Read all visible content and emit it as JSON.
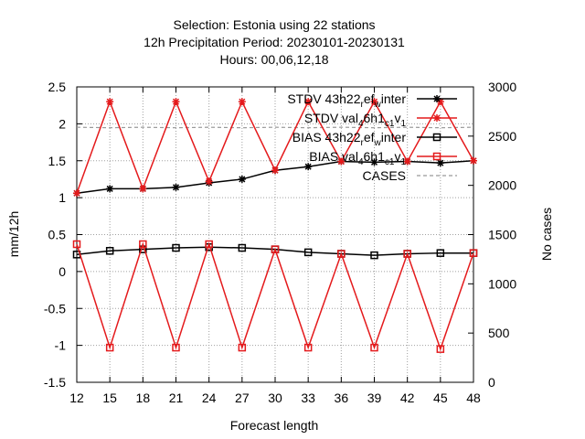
{
  "chart_data": {
    "type": "line",
    "title_lines": [
      "Selection: Estonia using     22 stations",
      "12h Precipitation    Period: 20230101-20230131",
      "Hours:  00,06,12,18"
    ],
    "xlabel": "Forecast length",
    "ylabel": "mm/12h",
    "y2label": "No cases",
    "x": [
      12,
      15,
      18,
      21,
      24,
      27,
      30,
      33,
      36,
      39,
      42,
      45,
      48
    ],
    "xlim": [
      12,
      48
    ],
    "ylim": [
      -1.5,
      2.5
    ],
    "y2lim": [
      0,
      3000
    ],
    "x_ticks": [
      "12",
      "15",
      "18",
      "21",
      "24",
      "27",
      "30",
      "33",
      "36",
      "39",
      "42",
      "45",
      "48"
    ],
    "y_ticks": [
      "-1.5",
      "-1",
      "-0.5",
      "0",
      "0.5",
      "1",
      "1.5",
      "2",
      "2.5"
    ],
    "y2_ticks": [
      "0",
      "500",
      "1000",
      "1500",
      "2000",
      "2500",
      "3000"
    ],
    "grid": true,
    "legend_position": "top-right",
    "series": [
      {
        "name": "STDV 43h22_ref_winter",
        "label_main": "STDV 43h22",
        "label_parts": [
          [
            "r",
            "ef"
          ],
          [
            "w",
            "inter"
          ]
        ],
        "color": "#000000",
        "marker": "star",
        "axis": "y1",
        "values": [
          1.06,
          1.12,
          1.12,
          1.14,
          1.2,
          1.25,
          1.37,
          1.42,
          1.49,
          1.48,
          1.49,
          1.47,
          1.5
        ]
      },
      {
        "name": "STDV val_46h1_c1_v1",
        "label_main": "STDV val",
        "label_parts": [
          [
            "4",
            "6h1"
          ],
          [
            "c1",
            "v"
          ],
          [
            "1",
            ""
          ]
        ],
        "color": "#e41a1c",
        "marker": "star",
        "axis": "y1",
        "values": [
          1.06,
          2.3,
          1.12,
          2.3,
          1.22,
          2.3,
          1.37,
          2.3,
          1.49,
          2.3,
          1.49,
          2.3,
          1.5
        ]
      },
      {
        "name": "BIAS 43h22_ref_winter",
        "label_main": "BIAS 43h22",
        "label_parts": [
          [
            "r",
            "ef"
          ],
          [
            "w",
            "inter"
          ]
        ],
        "color": "#000000",
        "marker": "square",
        "axis": "y1",
        "values": [
          0.23,
          0.28,
          0.3,
          0.32,
          0.33,
          0.32,
          0.3,
          0.26,
          0.24,
          0.22,
          0.24,
          0.25,
          0.25
        ]
      },
      {
        "name": "BIAS val_46h1_c1_v1",
        "label_main": "BIAS val",
        "label_parts": [
          [
            "4",
            "6h1"
          ],
          [
            "c1",
            "v"
          ],
          [
            "1",
            ""
          ]
        ],
        "color": "#e41a1c",
        "marker": "square",
        "axis": "y1",
        "values": [
          0.37,
          -1.03,
          0.37,
          -1.03,
          0.37,
          -1.03,
          0.3,
          -1.03,
          0.24,
          -1.03,
          0.24,
          -1.05,
          0.25
        ]
      },
      {
        "name": "CASES",
        "color": "#999999",
        "marker": "none",
        "dashed": true,
        "axis": "y2",
        "values": [
          2590,
          2585,
          2590,
          2585,
          2590,
          2585,
          2590,
          2585,
          2590,
          2585,
          2590,
          2585,
          2590
        ]
      }
    ]
  }
}
